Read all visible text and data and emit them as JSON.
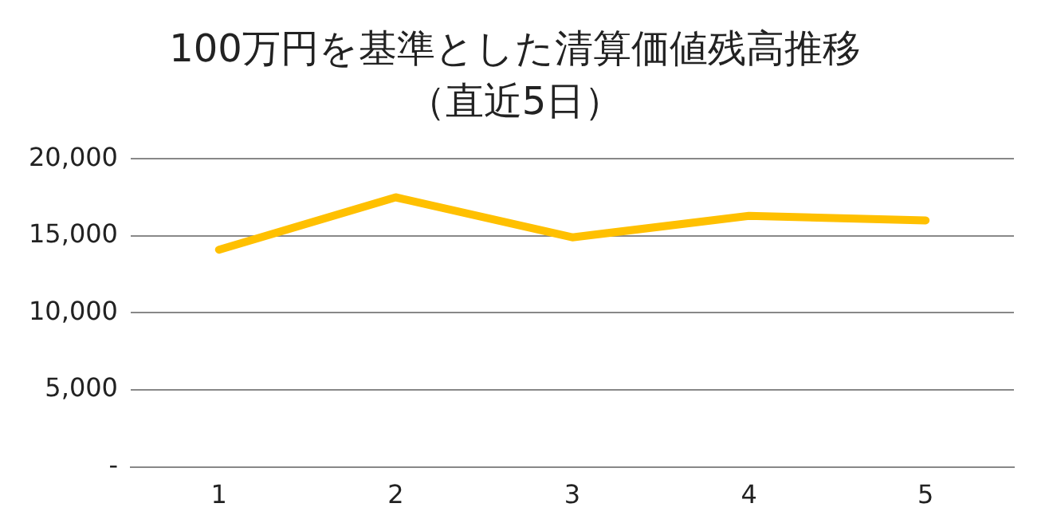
{
  "chart_data": {
    "type": "line",
    "title": "100万円を基準とした清算価値残高推移",
    "subtitle": "（直近5日）",
    "categories": [
      "1",
      "2",
      "3",
      "4",
      "5"
    ],
    "series": [
      {
        "color": "#ffc000",
        "values": [
          14100,
          17500,
          14900,
          16300,
          16000
        ]
      }
    ],
    "ylim": [
      0,
      20000
    ],
    "yticks": [
      {
        "value": 0,
        "label": "-"
      },
      {
        "value": 5000,
        "label": "5,000"
      },
      {
        "value": 10000,
        "label": "10,000"
      },
      {
        "value": 15000,
        "label": "15,000"
      },
      {
        "value": 20000,
        "label": "20,000"
      }
    ],
    "grid": "y",
    "legend": false,
    "marker": "none",
    "line_style": "solid"
  }
}
